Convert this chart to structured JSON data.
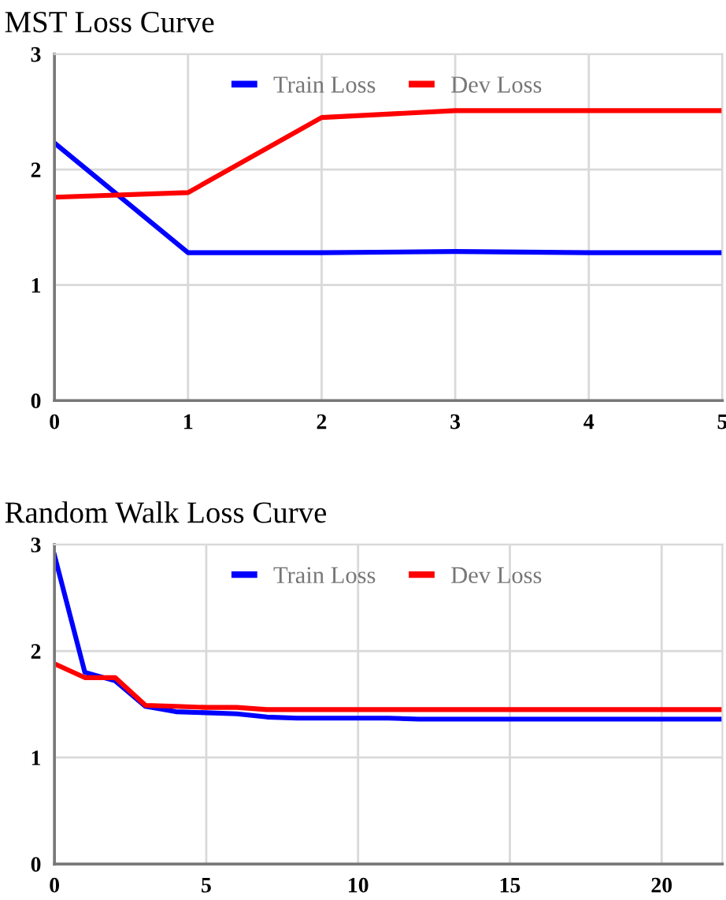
{
  "chart_data": [
    {
      "type": "line",
      "title": "MST Loss Curve",
      "x": [
        0,
        1,
        2,
        3,
        4,
        5
      ],
      "xlim": [
        0,
        5
      ],
      "xticks": [
        0,
        1,
        2,
        3,
        4,
        5
      ],
      "ylim": [
        0,
        3
      ],
      "yticks": [
        0,
        1,
        2,
        3
      ],
      "grid": true,
      "legend": "top",
      "series": [
        {
          "name": "Train Loss",
          "color": "#0000ff",
          "values": [
            2.23,
            1.28,
            1.28,
            1.29,
            1.28,
            1.28
          ]
        },
        {
          "name": "Dev Loss",
          "color": "#ff0000",
          "values": [
            1.76,
            1.8,
            2.45,
            2.51,
            2.51,
            2.51
          ]
        }
      ]
    },
    {
      "type": "line",
      "title": "Random Walk Loss Curve",
      "x": [
        0,
        1,
        2,
        3,
        4,
        5,
        6,
        7,
        8,
        9,
        10,
        11,
        12,
        13,
        14,
        15,
        16,
        17,
        18,
        19,
        20,
        21,
        22
      ],
      "xlim": [
        0,
        22
      ],
      "xticks": [
        0,
        5,
        10,
        15,
        20
      ],
      "ylim": [
        0,
        3
      ],
      "yticks": [
        0,
        1,
        2,
        3
      ],
      "grid": true,
      "legend": "top",
      "series": [
        {
          "name": "Train Loss",
          "color": "#0000ff",
          "values": [
            2.9,
            1.8,
            1.72,
            1.48,
            1.43,
            1.42,
            1.41,
            1.38,
            1.37,
            1.37,
            1.37,
            1.37,
            1.36,
            1.36,
            1.36,
            1.36,
            1.36,
            1.36,
            1.36,
            1.36,
            1.36,
            1.36,
            1.36
          ]
        },
        {
          "name": "Dev Loss",
          "color": "#ff0000",
          "values": [
            1.88,
            1.75,
            1.75,
            1.49,
            1.48,
            1.47,
            1.47,
            1.45,
            1.45,
            1.45,
            1.45,
            1.45,
            1.45,
            1.45,
            1.45,
            1.45,
            1.45,
            1.45,
            1.45,
            1.45,
            1.45,
            1.45,
            1.45
          ]
        }
      ]
    }
  ]
}
